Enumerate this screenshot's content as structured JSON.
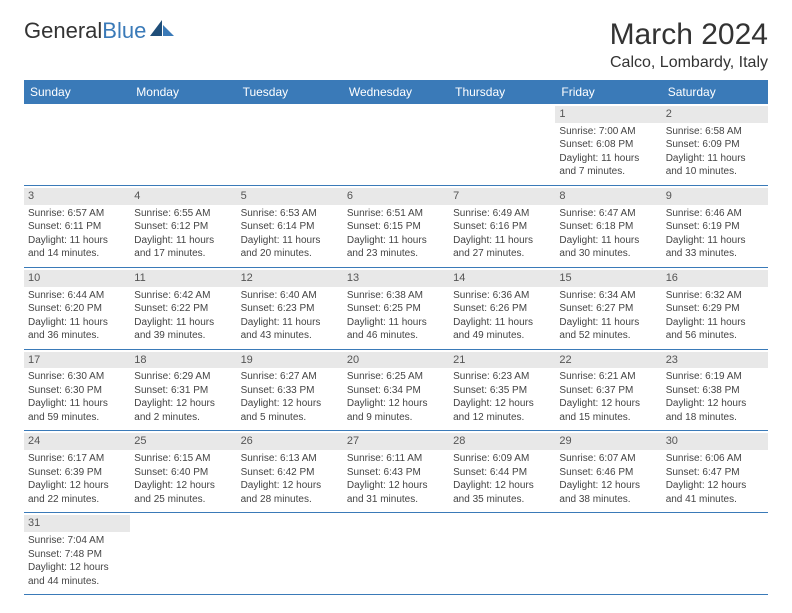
{
  "branding": {
    "logo_text_dark": "General",
    "logo_text_blue": "Blue"
  },
  "header": {
    "month_title": "March 2024",
    "location": "Calco, Lombardy, Italy"
  },
  "colors": {
    "header_bg": "#3a7ab8",
    "daynum_bg": "#e8e8e8",
    "border": "#3a7ab8",
    "text": "#333333"
  },
  "weekdays": [
    "Sunday",
    "Monday",
    "Tuesday",
    "Wednesday",
    "Thursday",
    "Friday",
    "Saturday"
  ],
  "leading_blanks": 5,
  "days": [
    {
      "n": 1,
      "sunrise": "7:00 AM",
      "sunset": "6:08 PM",
      "daylight": "11 hours and 7 minutes."
    },
    {
      "n": 2,
      "sunrise": "6:58 AM",
      "sunset": "6:09 PM",
      "daylight": "11 hours and 10 minutes."
    },
    {
      "n": 3,
      "sunrise": "6:57 AM",
      "sunset": "6:11 PM",
      "daylight": "11 hours and 14 minutes."
    },
    {
      "n": 4,
      "sunrise": "6:55 AM",
      "sunset": "6:12 PM",
      "daylight": "11 hours and 17 minutes."
    },
    {
      "n": 5,
      "sunrise": "6:53 AM",
      "sunset": "6:14 PM",
      "daylight": "11 hours and 20 minutes."
    },
    {
      "n": 6,
      "sunrise": "6:51 AM",
      "sunset": "6:15 PM",
      "daylight": "11 hours and 23 minutes."
    },
    {
      "n": 7,
      "sunrise": "6:49 AM",
      "sunset": "6:16 PM",
      "daylight": "11 hours and 27 minutes."
    },
    {
      "n": 8,
      "sunrise": "6:47 AM",
      "sunset": "6:18 PM",
      "daylight": "11 hours and 30 minutes."
    },
    {
      "n": 9,
      "sunrise": "6:46 AM",
      "sunset": "6:19 PM",
      "daylight": "11 hours and 33 minutes."
    },
    {
      "n": 10,
      "sunrise": "6:44 AM",
      "sunset": "6:20 PM",
      "daylight": "11 hours and 36 minutes."
    },
    {
      "n": 11,
      "sunrise": "6:42 AM",
      "sunset": "6:22 PM",
      "daylight": "11 hours and 39 minutes."
    },
    {
      "n": 12,
      "sunrise": "6:40 AM",
      "sunset": "6:23 PM",
      "daylight": "11 hours and 43 minutes."
    },
    {
      "n": 13,
      "sunrise": "6:38 AM",
      "sunset": "6:25 PM",
      "daylight": "11 hours and 46 minutes."
    },
    {
      "n": 14,
      "sunrise": "6:36 AM",
      "sunset": "6:26 PM",
      "daylight": "11 hours and 49 minutes."
    },
    {
      "n": 15,
      "sunrise": "6:34 AM",
      "sunset": "6:27 PM",
      "daylight": "11 hours and 52 minutes."
    },
    {
      "n": 16,
      "sunrise": "6:32 AM",
      "sunset": "6:29 PM",
      "daylight": "11 hours and 56 minutes."
    },
    {
      "n": 17,
      "sunrise": "6:30 AM",
      "sunset": "6:30 PM",
      "daylight": "11 hours and 59 minutes."
    },
    {
      "n": 18,
      "sunrise": "6:29 AM",
      "sunset": "6:31 PM",
      "daylight": "12 hours and 2 minutes."
    },
    {
      "n": 19,
      "sunrise": "6:27 AM",
      "sunset": "6:33 PM",
      "daylight": "12 hours and 5 minutes."
    },
    {
      "n": 20,
      "sunrise": "6:25 AM",
      "sunset": "6:34 PM",
      "daylight": "12 hours and 9 minutes."
    },
    {
      "n": 21,
      "sunrise": "6:23 AM",
      "sunset": "6:35 PM",
      "daylight": "12 hours and 12 minutes."
    },
    {
      "n": 22,
      "sunrise": "6:21 AM",
      "sunset": "6:37 PM",
      "daylight": "12 hours and 15 minutes."
    },
    {
      "n": 23,
      "sunrise": "6:19 AM",
      "sunset": "6:38 PM",
      "daylight": "12 hours and 18 minutes."
    },
    {
      "n": 24,
      "sunrise": "6:17 AM",
      "sunset": "6:39 PM",
      "daylight": "12 hours and 22 minutes."
    },
    {
      "n": 25,
      "sunrise": "6:15 AM",
      "sunset": "6:40 PM",
      "daylight": "12 hours and 25 minutes."
    },
    {
      "n": 26,
      "sunrise": "6:13 AM",
      "sunset": "6:42 PM",
      "daylight": "12 hours and 28 minutes."
    },
    {
      "n": 27,
      "sunrise": "6:11 AM",
      "sunset": "6:43 PM",
      "daylight": "12 hours and 31 minutes."
    },
    {
      "n": 28,
      "sunrise": "6:09 AM",
      "sunset": "6:44 PM",
      "daylight": "12 hours and 35 minutes."
    },
    {
      "n": 29,
      "sunrise": "6:07 AM",
      "sunset": "6:46 PM",
      "daylight": "12 hours and 38 minutes."
    },
    {
      "n": 30,
      "sunrise": "6:06 AM",
      "sunset": "6:47 PM",
      "daylight": "12 hours and 41 minutes."
    },
    {
      "n": 31,
      "sunrise": "7:04 AM",
      "sunset": "7:48 PM",
      "daylight": "12 hours and 44 minutes."
    }
  ],
  "labels": {
    "sunrise": "Sunrise:",
    "sunset": "Sunset:",
    "daylight": "Daylight:"
  }
}
